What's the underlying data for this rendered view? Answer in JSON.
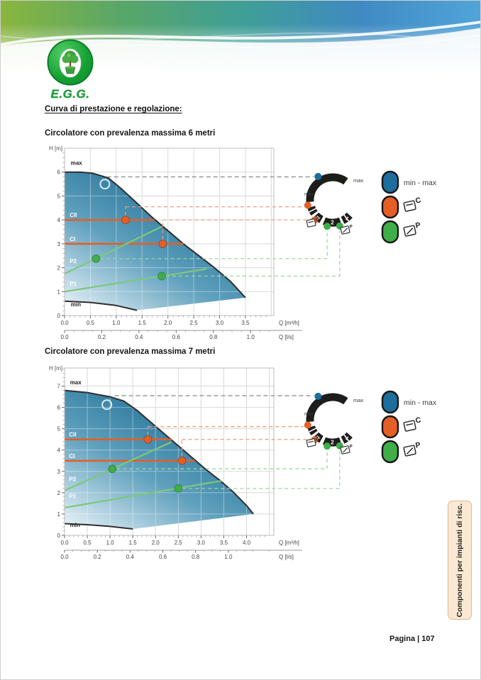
{
  "page": {
    "brand_name": "E.G.G.",
    "heading": "Curva di prestazione e regolazione:",
    "footer": "Pagina | 107",
    "side_tab": "Componenti per impianti di risc."
  },
  "legend": {
    "items": [
      {
        "label": "min - max",
        "color": "#1c6e9c",
        "icon": "none"
      },
      {
        "label": "C",
        "color": "#e45f25",
        "icon": "constant-pressure"
      },
      {
        "label": "P",
        "color": "#3fae49",
        "icon": "proportional-pressure"
      }
    ]
  },
  "dial": {
    "max_label": "max",
    "min_label": "min",
    "positions": [
      "1",
      "2",
      "1"
    ],
    "c_label": "C",
    "p_label": "P"
  },
  "colors": {
    "envelope_dark": "#0e6089",
    "envelope_mid": "#5fa0bd",
    "envelope_light": "#eaf4f9",
    "orange": "#e45f25",
    "green": "#3fae49",
    "blue": "#1c6e9c",
    "line_green": "#7dc87a",
    "dash_gray": "#8f8f8f",
    "dash_orange": "#f09d79",
    "dash_green": "#9ed69b",
    "arc_black": "#1d1d1b",
    "grid": "#d9d9d9",
    "frame": "#bdbdbd",
    "curve_stroke": "#2f2f2f",
    "tab_bg": "#fae8d2"
  },
  "chart_data": [
    {
      "type": "area",
      "title": "Circolatore con prevalenza massima 6 metri",
      "ylabel": "H [m]",
      "xlabel_primary": "Q [m³/h]",
      "xlabel_secondary": "Q [l/s]",
      "xlim": [
        0,
        4.05
      ],
      "ylim": [
        0,
        7.0
      ],
      "x_ticks_m3h": [
        0.0,
        0.5,
        1.0,
        1.5,
        2.0,
        2.5,
        3.0,
        3.5
      ],
      "x_ticks_ls": [
        0.0,
        0.2,
        0.4,
        0.6,
        0.8,
        1.0
      ],
      "y_ticks": [
        0,
        1,
        2,
        3,
        4,
        5,
        6
      ],
      "max_label": "max",
      "min_label": "min",
      "max_label_H": 6.3,
      "min_label_H": 0.38,
      "envelope_top": [
        [
          0,
          6.0
        ],
        [
          0.3,
          6.0
        ],
        [
          0.55,
          5.95
        ],
        [
          0.85,
          5.75
        ],
        [
          1.1,
          5.3
        ],
        [
          1.4,
          4.7
        ],
        [
          1.7,
          4.1
        ],
        [
          2.0,
          3.55
        ],
        [
          2.3,
          3.0
        ],
        [
          2.6,
          2.5
        ],
        [
          2.9,
          2.0
        ],
        [
          3.2,
          1.45
        ],
        [
          3.5,
          0.75
        ]
      ],
      "envelope_bottom": [
        [
          0,
          0.6
        ],
        [
          0.5,
          0.55
        ],
        [
          1.0,
          0.42
        ],
        [
          1.4,
          0.22
        ]
      ],
      "const_curves": [
        {
          "label": "CII",
          "H": 4.0,
          "x_end": 1.74,
          "dot": [
            1.18,
            4.0
          ],
          "dash_H": 4.55
        },
        {
          "label": "CI",
          "H": 3.0,
          "x_end": 2.3,
          "dot": [
            1.9,
            3.0
          ],
          "dash_H": 4.0
        }
      ],
      "prop_curves": [
        {
          "label": "P2",
          "from": [
            0,
            1.75
          ],
          "to": [
            1.88,
            3.72
          ],
          "dot": [
            0.61,
            2.38
          ],
          "label_H": 2.2
        },
        {
          "label": "P1",
          "from": [
            0,
            1.0
          ],
          "to": [
            2.75,
            1.95
          ],
          "dot": [
            1.88,
            1.65
          ],
          "label_H": 1.25
        }
      ],
      "max_dash": {
        "H": 5.8,
        "x_start": 0.82
      },
      "open_circle": [
        0.78,
        5.5
      ]
    },
    {
      "type": "area",
      "title": "Circolatore con prevalenza massima 7 metri",
      "ylabel": "H [m]",
      "xlabel_primary": "Q [m³/h]",
      "xlabel_secondary": "Q [l/s]",
      "xlim": [
        0,
        4.6
      ],
      "ylim": [
        0,
        7.85
      ],
      "x_ticks_m3h": [
        0.0,
        0.5,
        1.0,
        1.5,
        2.0,
        2.5,
        3.0,
        3.5,
        4.0
      ],
      "x_ticks_ls": [
        0.0,
        0.2,
        0.4,
        0.6,
        0.8,
        1.0
      ],
      "y_ticks": [
        0,
        1,
        2,
        3,
        4,
        5,
        6,
        7
      ],
      "max_label": "max",
      "min_label": "min",
      "max_label_H": 7.08,
      "min_label_H": 0.4,
      "envelope_top": [
        [
          0,
          6.8
        ],
        [
          0.5,
          6.7
        ],
        [
          1.0,
          6.5
        ],
        [
          1.3,
          6.3
        ],
        [
          1.6,
          5.85
        ],
        [
          1.9,
          5.3
        ],
        [
          2.2,
          4.75
        ],
        [
          2.5,
          4.2
        ],
        [
          2.8,
          3.65
        ],
        [
          3.1,
          3.1
        ],
        [
          3.4,
          2.6
        ],
        [
          3.7,
          2.05
        ],
        [
          4.0,
          1.4
        ],
        [
          4.15,
          1.0
        ]
      ],
      "envelope_bottom": [
        [
          0,
          0.55
        ],
        [
          0.5,
          0.5
        ],
        [
          1.0,
          0.42
        ],
        [
          1.5,
          0.3
        ]
      ],
      "const_curves": [
        {
          "label": "CII",
          "H": 4.5,
          "x_end": 2.36,
          "dot": [
            1.83,
            4.5
          ],
          "dash_H": 5.1
        },
        {
          "label": "CI",
          "H": 3.5,
          "x_end": 2.86,
          "dot": [
            2.58,
            3.5
          ],
          "dash_H": 4.5
        }
      ],
      "prop_curves": [
        {
          "label": "P2",
          "from": [
            0,
            2.1
          ],
          "to": [
            2.35,
            4.38
          ],
          "dot": [
            1.05,
            3.12
          ],
          "label_H": 2.55
        },
        {
          "label": "P1",
          "from": [
            0,
            1.3
          ],
          "to": [
            3.45,
            2.56
          ],
          "dot": [
            2.5,
            2.2
          ],
          "label_H": 1.75
        }
      ],
      "max_dash": {
        "H": 6.55,
        "x_start": 1.1
      },
      "open_circle": [
        0.93,
        6.13
      ]
    }
  ]
}
